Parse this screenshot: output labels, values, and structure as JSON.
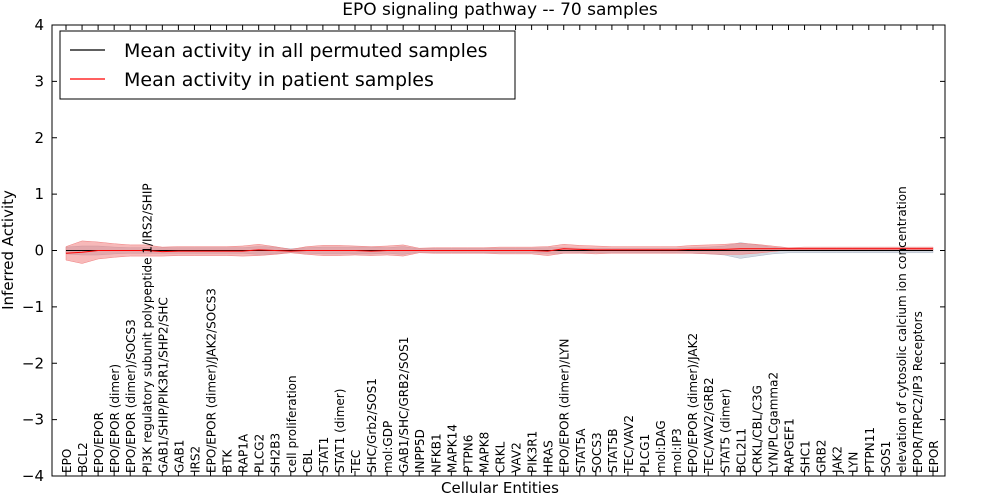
{
  "chart_data": {
    "type": "line",
    "title": "EPO signaling pathway -- 70 samples",
    "xlabel": "Cellular Entities",
    "ylabel": "Inferred Activity",
    "ylim": [
      -4,
      4
    ],
    "yticks": [
      -4,
      -3,
      -2,
      -1,
      0,
      1,
      2,
      3,
      4
    ],
    "ytick_labels": [
      "−4",
      "−3",
      "−2",
      "−1",
      "0",
      "1",
      "2",
      "3",
      "4"
    ],
    "grid": false,
    "legend_position": "top-left",
    "categories": [
      "EPO",
      "BCL2",
      "EPO/EPOR",
      "EPO/EPOR (dimer)",
      "EPO/EPOR (dimer)/SOCS3",
      "PI3K regulatory subunit polypeptide 1/IRS2/SHIP",
      "GAB1/SHIP/PIK3R1/SHP2/SHC",
      "GAB1",
      "IRS2",
      "EPO/EPOR (dimer)/JAK2/SOCS3",
      "BTK",
      "RAP1A",
      "PLCG2",
      "SH2B3",
      "cell proliferation",
      "CBL",
      "STAT1",
      "STAT1 (dimer)",
      "TEC",
      "SHC/Grb2/SOS1",
      "mol:GDP",
      "GAB1/SHC/GRB2/SOS1",
      "INPP5D",
      "NFKB1",
      "MAPK14",
      "PTPN6",
      "MAPK8",
      "CRKL",
      "VAV2",
      "PIK3R1",
      "HRAS",
      "EPO/EPOR (dimer)/LYN",
      "STAT5A",
      "SOCS3",
      "STAT5B",
      "TEC/VAV2",
      "PLCG1",
      "mol:DAG",
      "mol:IP3",
      "EPO/EPOR (dimer)/JAK2",
      "TEC/VAV2/GRB2",
      "STAT5 (dimer)",
      "BCL2L1",
      "CRKL/CBL/C3G",
      "LYN/PLCgamma2",
      "RAPGEF1",
      "SHC1",
      "GRB2",
      "JAK2",
      "LYN",
      "PTPN11",
      "SOS1",
      "elevation of cytosolic calcium ion concentration",
      "EPOR/TRPC2/IP3 Receptors",
      "EPOR"
    ],
    "series": [
      {
        "name": "Mean activity in all permuted samples",
        "color": "#000000",
        "band_color": "#aeb8c8",
        "values": [
          0.0,
          0.0,
          0.0,
          0.0,
          0.0,
          0.0,
          0.0,
          0.0,
          0.0,
          0.0,
          0.0,
          0.0,
          0.0,
          0.0,
          0.0,
          0.0,
          0.0,
          0.0,
          0.0,
          0.0,
          0.0,
          0.0,
          0.0,
          0.0,
          0.0,
          0.0,
          0.0,
          0.0,
          0.0,
          0.0,
          0.0,
          0.0,
          0.0,
          0.0,
          0.0,
          0.0,
          0.0,
          0.0,
          0.0,
          0.0,
          0.0,
          0.0,
          0.0,
          0.0,
          0.0,
          0.0,
          0.0,
          0.0,
          0.0,
          0.0,
          0.0,
          0.0,
          0.0,
          0.0,
          0.0
        ],
        "band": [
          0.06,
          0.08,
          0.08,
          0.06,
          0.05,
          0.05,
          0.05,
          0.05,
          0.05,
          0.05,
          0.05,
          0.05,
          0.07,
          0.06,
          0.03,
          0.05,
          0.06,
          0.06,
          0.06,
          0.06,
          0.05,
          0.07,
          0.03,
          0.04,
          0.04,
          0.04,
          0.04,
          0.04,
          0.04,
          0.04,
          0.05,
          0.05,
          0.04,
          0.04,
          0.04,
          0.04,
          0.04,
          0.04,
          0.04,
          0.05,
          0.06,
          0.08,
          0.14,
          0.1,
          0.06,
          0.04,
          0.04,
          0.04,
          0.04,
          0.04,
          0.04,
          0.04,
          0.04,
          0.04,
          0.04
        ]
      },
      {
        "name": "Mean activity in patient samples",
        "color": "#ff0000",
        "band_color": "#f08080",
        "values": [
          -0.05,
          -0.03,
          0.0,
          0.0,
          0.0,
          0.0,
          -0.02,
          -0.01,
          -0.01,
          -0.01,
          -0.01,
          -0.01,
          0.01,
          0.0,
          -0.01,
          0.0,
          0.0,
          0.0,
          0.0,
          -0.01,
          0.0,
          0.0,
          0.0,
          0.0,
          0.0,
          0.0,
          0.0,
          0.0,
          0.0,
          0.0,
          -0.01,
          0.03,
          0.02,
          0.01,
          0.01,
          0.01,
          0.01,
          0.01,
          0.01,
          0.02,
          0.02,
          0.02,
          0.03,
          0.03,
          0.03,
          0.03,
          0.03,
          0.03,
          0.03,
          0.03,
          0.03,
          0.03,
          0.03,
          0.03,
          0.03
        ],
        "band": [
          0.12,
          0.2,
          0.15,
          0.12,
          0.1,
          0.1,
          0.08,
          0.08,
          0.08,
          0.08,
          0.08,
          0.09,
          0.1,
          0.07,
          0.03,
          0.07,
          0.09,
          0.09,
          0.08,
          0.08,
          0.08,
          0.1,
          0.04,
          0.05,
          0.05,
          0.05,
          0.05,
          0.06,
          0.06,
          0.06,
          0.08,
          0.08,
          0.07,
          0.07,
          0.06,
          0.06,
          0.06,
          0.06,
          0.06,
          0.07,
          0.08,
          0.09,
          0.1,
          0.08,
          0.05,
          0.02,
          0.03,
          0.03,
          0.03,
          0.03,
          0.03,
          0.03,
          0.03,
          0.03,
          0.03
        ]
      }
    ]
  }
}
